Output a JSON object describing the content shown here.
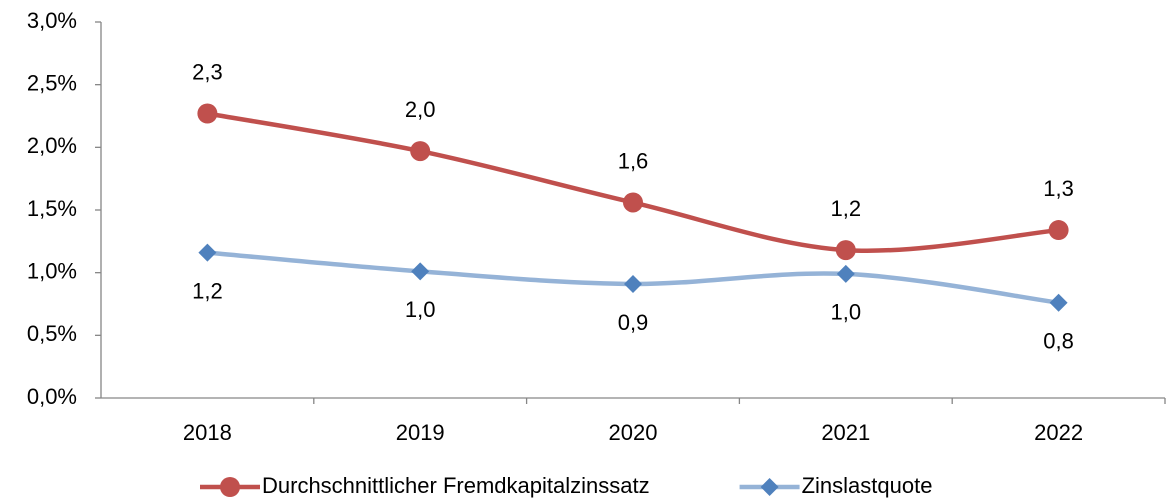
{
  "chart_data": {
    "type": "line",
    "categories": [
      "2018",
      "2019",
      "2020",
      "2021",
      "2022"
    ],
    "series": [
      {
        "name": "Durchschnittlicher Fremdkapitalzinssatz",
        "color": "#c0504d",
        "marker": "circle",
        "values": [
          2.27,
          1.97,
          1.56,
          1.18,
          1.34
        ],
        "value_labels": [
          "2,3",
          "2,0",
          "1,6",
          "1,2",
          "1,3"
        ]
      },
      {
        "name": "Zinslastquote",
        "color": "#95b3d7",
        "marker_color": "#4f81bd",
        "marker": "diamond",
        "values": [
          1.16,
          1.01,
          0.91,
          0.99,
          0.76
        ],
        "value_labels": [
          "1,2",
          "1,0",
          "0,9",
          "1,0",
          "0,8"
        ]
      }
    ],
    "ylim": [
      0,
      3
    ],
    "yticks": [
      {
        "value": 0,
        "label": "0,0%"
      },
      {
        "value": 0.5,
        "label": "0,5%"
      },
      {
        "value": 1,
        "label": "1,0%"
      },
      {
        "value": 1.5,
        "label": "1,5%"
      },
      {
        "value": 2,
        "label": "2,0%"
      },
      {
        "value": 2.5,
        "label": "2,5%"
      },
      {
        "value": 3,
        "label": "3,0%"
      }
    ],
    "grid": false,
    "smooth": true,
    "legend": "bottom"
  }
}
